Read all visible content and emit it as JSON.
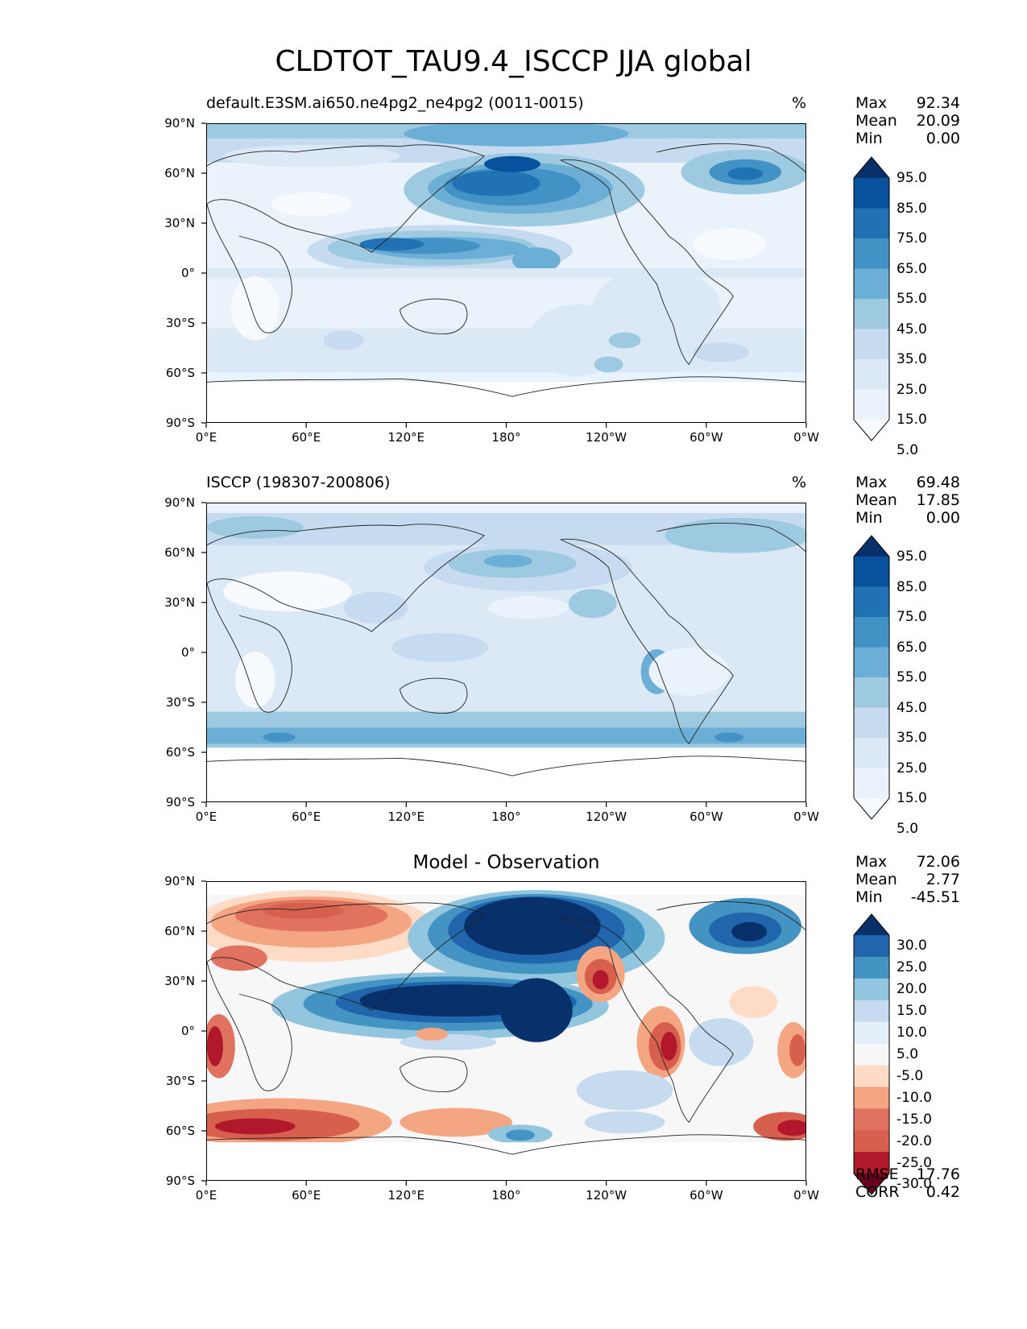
{
  "figure": {
    "title": "CLDTOT_TAU9.4_ISCCP JJA global"
  },
  "axes": {
    "lat_ticks": [
      "90°N",
      "60°N",
      "30°N",
      "0°",
      "30°S",
      "60°S",
      "90°S"
    ],
    "lon_ticks": [
      "0°E",
      "60°E",
      "120°E",
      "180°",
      "120°W",
      "60°W",
      "0°W"
    ]
  },
  "panels": [
    {
      "id": "model",
      "title_left": "default.E3SM.ai650.ne4pg2_ne4pg2 (0011-0015)",
      "units": "%",
      "stats": [
        {
          "label": "Max",
          "value": "92.34"
        },
        {
          "label": "Mean",
          "value": "20.09"
        },
        {
          "label": "Min",
          "value": "0.00"
        }
      ],
      "colorbar": {
        "labels": [
          "95.0",
          "85.0",
          "75.0",
          "65.0",
          "55.0",
          "45.0",
          "35.0",
          "25.0",
          "15.0",
          "5.0"
        ],
        "colors": [
          "#08306b",
          "#08519c",
          "#2171b5",
          "#4292c6",
          "#6baed6",
          "#9ecae1",
          "#c6dbef",
          "#dbe9f6",
          "#eaf2fb",
          "#f7fbff"
        ]
      }
    },
    {
      "id": "obs",
      "title_left": "ISCCP (198307-200806)",
      "units": "%",
      "stats": [
        {
          "label": "Max",
          "value": "69.48"
        },
        {
          "label": "Mean",
          "value": "17.85"
        },
        {
          "label": "Min",
          "value": "0.00"
        }
      ],
      "colorbar": {
        "labels": [
          "95.0",
          "85.0",
          "75.0",
          "65.0",
          "55.0",
          "45.0",
          "35.0",
          "25.0",
          "15.0",
          "5.0"
        ],
        "colors": [
          "#08306b",
          "#08519c",
          "#2171b5",
          "#4292c6",
          "#6baed6",
          "#9ecae1",
          "#c6dbef",
          "#dbe9f6",
          "#eaf2fb",
          "#f7fbff"
        ]
      }
    },
    {
      "id": "diff",
      "title_center": "Model - Observation",
      "stats": [
        {
          "label": "Max",
          "value": "72.06"
        },
        {
          "label": "Mean",
          "value": "2.77"
        },
        {
          "label": "Min",
          "value": "-45.51"
        }
      ],
      "extra_stats": [
        {
          "label": "RMSE",
          "value": "17.76"
        },
        {
          "label": "CORR",
          "value": "0.42"
        }
      ],
      "colorbar": {
        "labels": [
          "30.0",
          "25.0",
          "20.0",
          "15.0",
          "10.0",
          "5.0",
          "-5.0",
          "-10.0",
          "-15.0",
          "-20.0",
          "-25.0",
          "-30.0"
        ],
        "colors": [
          "#08306b",
          "#2166ac",
          "#4393c3",
          "#92c5de",
          "#c6dbef",
          "#e5eff7",
          "#f7f7f7",
          "#fddbc7",
          "#f4a582",
          "#e0725f",
          "#d6604d",
          "#b2182b",
          "#67001f"
        ]
      }
    }
  ]
}
